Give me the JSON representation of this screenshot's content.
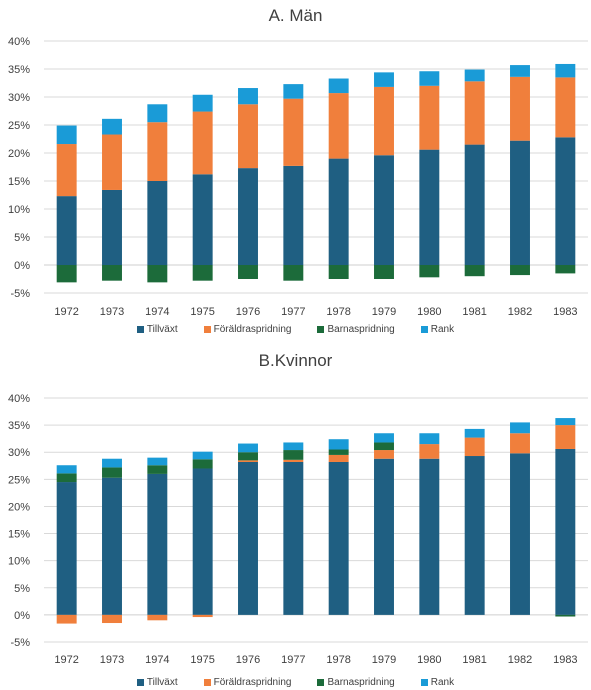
{
  "chart_data": [
    {
      "type": "bar",
      "stacked": true,
      "title": "A. Män",
      "categories": [
        "1972",
        "1973",
        "1974",
        "1975",
        "1976",
        "1977",
        "1978",
        "1979",
        "1980",
        "1981",
        "1982",
        "1983"
      ],
      "ylim": [
        -5,
        40
      ],
      "yticks": [
        -5,
        0,
        5,
        10,
        15,
        20,
        25,
        30,
        35,
        40
      ],
      "ytick_labels": [
        "-5%",
        "0%",
        "5%",
        "10%",
        "15%",
        "20%",
        "25%",
        "30%",
        "35%",
        "40%"
      ],
      "grid": true,
      "legend_position": "bottom",
      "series": [
        {
          "name": "Tillväxt",
          "color": "#1f5f82",
          "values": [
            12.3,
            13.4,
            15.0,
            16.2,
            17.3,
            17.7,
            19.0,
            19.6,
            20.6,
            21.5,
            22.2,
            22.8
          ]
        },
        {
          "name": "Föräldraspridning",
          "color": "#f07f3c",
          "values": [
            9.3,
            9.9,
            10.5,
            11.2,
            11.4,
            12.0,
            11.7,
            12.2,
            11.4,
            11.3,
            11.4,
            10.7
          ]
        },
        {
          "name": "Barnaspridning",
          "color": "#1c6b3a",
          "values": [
            -3.1,
            -2.8,
            -3.1,
            -2.8,
            -2.5,
            -2.8,
            -2.5,
            -2.5,
            -2.2,
            -2.0,
            -1.8,
            -1.5
          ]
        },
        {
          "name": "Rank",
          "color": "#1a9bd7",
          "values": [
            3.3,
            2.8,
            3.2,
            3.0,
            2.9,
            2.6,
            2.6,
            2.6,
            2.6,
            2.1,
            2.1,
            2.4
          ]
        }
      ]
    },
    {
      "type": "bar",
      "stacked": true,
      "title": "B.Kvinnor",
      "categories": [
        "1972",
        "1973",
        "1974",
        "1975",
        "1976",
        "1977",
        "1978",
        "1979",
        "1980",
        "1981",
        "1982",
        "1983"
      ],
      "ylim": [
        -5,
        40
      ],
      "yticks": [
        -5,
        0,
        5,
        10,
        15,
        20,
        25,
        30,
        35,
        40
      ],
      "ytick_labels": [
        "-5%",
        "0%",
        "5%",
        "10%",
        "15%",
        "20%",
        "25%",
        "30%",
        "35%",
        "40%"
      ],
      "grid": true,
      "legend_position": "bottom",
      "series": [
        {
          "name": "Tillväxt",
          "color": "#1f5f82",
          "values": [
            24.5,
            25.3,
            26.0,
            27.0,
            28.2,
            28.2,
            28.2,
            28.8,
            28.8,
            29.3,
            29.8,
            30.6
          ]
        },
        {
          "name": "Föräldraspridning",
          "color": "#f07f3c",
          "values": [
            -1.6,
            -1.5,
            -1.0,
            -0.4,
            0.3,
            0.4,
            1.3,
            1.6,
            2.7,
            3.4,
            3.7,
            4.4
          ]
        },
        {
          "name": "Barnaspridning",
          "color": "#1c6b3a",
          "values": [
            1.6,
            1.9,
            1.6,
            1.7,
            1.5,
            1.8,
            1.0,
            1.4,
            0.0,
            0.0,
            0.0,
            -0.3
          ]
        },
        {
          "name": "Rank",
          "color": "#1a9bd7",
          "values": [
            1.5,
            1.6,
            1.4,
            1.4,
            1.6,
            1.4,
            1.9,
            1.7,
            2.0,
            1.6,
            2.0,
            1.3
          ]
        }
      ]
    }
  ]
}
